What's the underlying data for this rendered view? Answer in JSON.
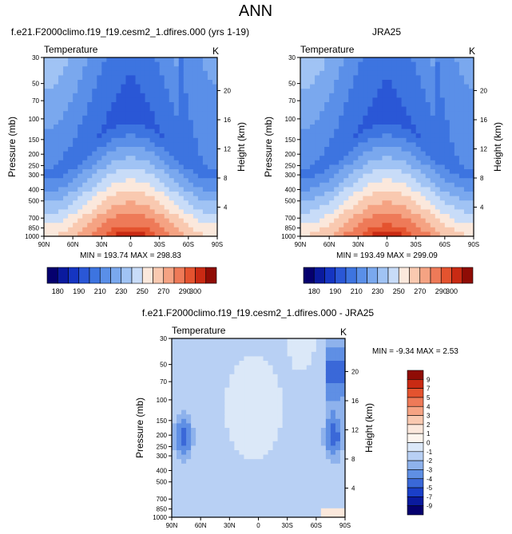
{
  "figure": {
    "title": "ANN"
  },
  "pressure_ticks": [
    30,
    50,
    70,
    100,
    150,
    200,
    250,
    300,
    400,
    500,
    700,
    850,
    1000
  ],
  "lat_ticks": [
    "90N",
    "60N",
    "30N",
    "0",
    "30S",
    "60S",
    "90S"
  ],
  "height_ticks": [
    4,
    8,
    12,
    16,
    20
  ],
  "chart_data": [
    {
      "type": "heatmap",
      "title": "f.e21.F2000climo.f19_f19.cesm2_1.dfires.000 (yrs 1-19)",
      "left_label": "Temperature",
      "right_label": "K",
      "xlabel": "",
      "ylabel": "Pressure (mb)",
      "y2label": "Height (km)",
      "x_range": [
        "90N",
        "90S"
      ],
      "y_range": [
        30,
        1000
      ],
      "y_scale": "log",
      "stats": "MIN = 193.74  MAX = 298.83",
      "min": 193.74,
      "max": 298.83,
      "colorbar_labels": [
        "180",
        "190",
        "210",
        "230",
        "250",
        "270",
        "290",
        "300"
      ],
      "colorbar_levels": [
        180,
        185,
        190,
        200,
        210,
        220,
        230,
        240,
        250,
        260,
        270,
        280,
        290,
        295,
        300
      ],
      "colorbar_colors": [
        "#05006e",
        "#0a1a9e",
        "#1535c2",
        "#2a57d6",
        "#3d74e0",
        "#5a8fe8",
        "#7aa8ee",
        "#a0c3f4",
        "#c8dcf8",
        "#fbe8dc",
        "#f9c9b0",
        "#f5a383",
        "#ee7a58",
        "#e4532f",
        "#c92a13",
        "#8f0c05"
      ]
    },
    {
      "type": "heatmap",
      "title": "JRA25",
      "left_label": "Temperature",
      "right_label": "K",
      "xlabel": "",
      "ylabel": "Pressure (mb)",
      "y2label": "Height (km)",
      "x_range": [
        "90N",
        "90S"
      ],
      "y_range": [
        30,
        1000
      ],
      "y_scale": "log",
      "stats": "MIN = 193.49  MAX = 299.09",
      "min": 193.49,
      "max": 299.09,
      "colorbar_labels": [
        "180",
        "190",
        "210",
        "230",
        "250",
        "270",
        "290",
        "300"
      ],
      "colorbar_levels": [
        180,
        185,
        190,
        200,
        210,
        220,
        230,
        240,
        250,
        260,
        270,
        280,
        290,
        295,
        300
      ],
      "colorbar_colors": [
        "#05006e",
        "#0a1a9e",
        "#1535c2",
        "#2a57d6",
        "#3d74e0",
        "#5a8fe8",
        "#7aa8ee",
        "#a0c3f4",
        "#c8dcf8",
        "#fbe8dc",
        "#f9c9b0",
        "#f5a383",
        "#ee7a58",
        "#e4532f",
        "#c92a13",
        "#8f0c05"
      ]
    },
    {
      "type": "heatmap",
      "title": "f.e21.F2000climo.f19_f19.cesm2_1.dfires.000 - JRA25",
      "left_label": "Temperature",
      "right_label": "K",
      "xlabel": "",
      "ylabel": "Pressure (mb)",
      "y2label": "Height (km)",
      "x_range": [
        "90N",
        "90S"
      ],
      "y_range": [
        30,
        1000
      ],
      "y_scale": "log",
      "stats": "MIN = -9.34  MAX =   2.53",
      "min": -9.34,
      "max": 2.53,
      "colorbar_labels": [
        "9",
        "7",
        "5",
        "4",
        "3",
        "2",
        "1",
        "0",
        "-1",
        "-2",
        "-3",
        "-4",
        "-5",
        "-7",
        "-9"
      ],
      "colorbar_colors": [
        "#8f0c05",
        "#c92a13",
        "#e4532f",
        "#ee7a58",
        "#f5a383",
        "#f9c9b0",
        "#fbe8dc",
        "#fdf5ee",
        "#dbe8f8",
        "#b8d0f4",
        "#8eb2ec",
        "#5f8fe4",
        "#3a68d8",
        "#1a3fc8",
        "#0a1a9e",
        "#05006e"
      ]
    }
  ]
}
